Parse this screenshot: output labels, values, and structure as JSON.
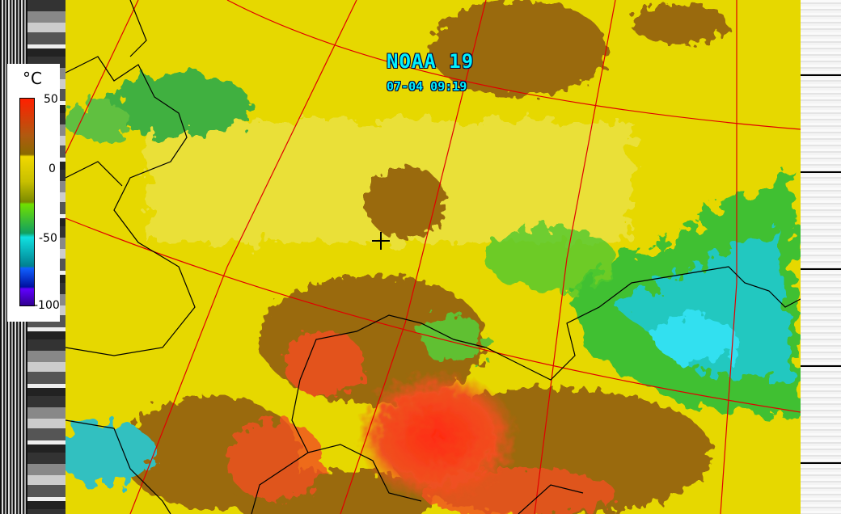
{
  "satellite": "NOAA 19",
  "timestamp": "07-04 09:19",
  "legend": {
    "unit": "°C",
    "labels": [
      "50",
      "0",
      "-50",
      "-100"
    ],
    "range": [
      -100,
      50
    ]
  },
  "colors": {
    "warm": "#e8d400",
    "hot": "#ff3a10",
    "brown": "#9a6a10",
    "cold": "#20d0e0",
    "green": "#40c030",
    "graticule": "#e00000",
    "border": "#000000",
    "text": "#00f0ff"
  },
  "markers": [
    {
      "icon": "crosshair-icon"
    }
  ]
}
